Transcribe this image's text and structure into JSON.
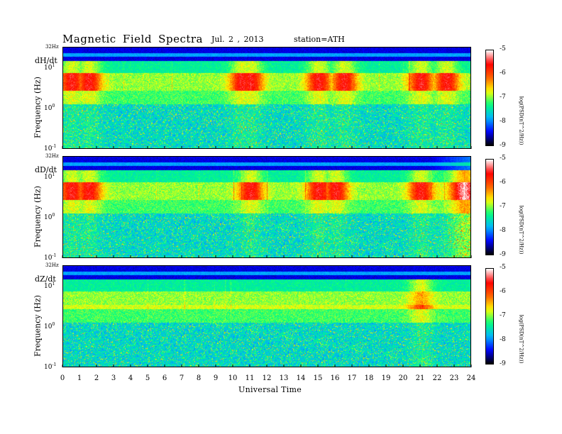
{
  "header": {
    "title": "Magnetic  Field  Spectra",
    "date": "Jul.  2  , 2013",
    "station": "station=ATH"
  },
  "chart_data": {
    "type": "heatmap",
    "xlabel": "Universal Time",
    "x_ticks": [
      "0",
      "1",
      "2",
      "3",
      "4",
      "5",
      "6",
      "7",
      "8",
      "9",
      "10",
      "11",
      "12",
      "13",
      "14",
      "15",
      "16",
      "17",
      "18",
      "19",
      "20",
      "21",
      "22",
      "23",
      "24"
    ],
    "xlim": [
      0,
      24
    ],
    "ylabel": "Frequency  (Hz)",
    "y_scale": "log",
    "y_top_label": "32Hz",
    "y_ticks": [
      {
        "base": "10",
        "exp": "1",
        "value": 10
      },
      {
        "base": "10",
        "exp": "0",
        "value": 1
      },
      {
        "base": "10",
        "exp": "-1",
        "value": 0.1
      }
    ],
    "colorbar": {
      "label": "log(PSD(nT^2/Hz))",
      "ticks": [
        "-5",
        "-6",
        "-7",
        "-8",
        "-9"
      ],
      "range": [
        -9,
        -5
      ],
      "colors": [
        "#000000",
        "#0000ff",
        "#00b4ff",
        "#00ff80",
        "#ffff00",
        "#ff6000",
        "#ff0000",
        "#ffffff"
      ]
    },
    "panels": [
      {
        "name": "dH/dt",
        "strong_events_ut": [
          0.5,
          1.5,
          10.5,
          11.0,
          15.0,
          16.5,
          21.0,
          22.5
        ]
      },
      {
        "name": "dD/dt",
        "strong_events_ut": [
          0.5,
          1.5,
          11.0,
          15.0,
          16.0,
          21.0,
          23.5
        ]
      },
      {
        "name": "dZ/dt",
        "strong_events_ut": [
          21.0
        ]
      }
    ]
  }
}
